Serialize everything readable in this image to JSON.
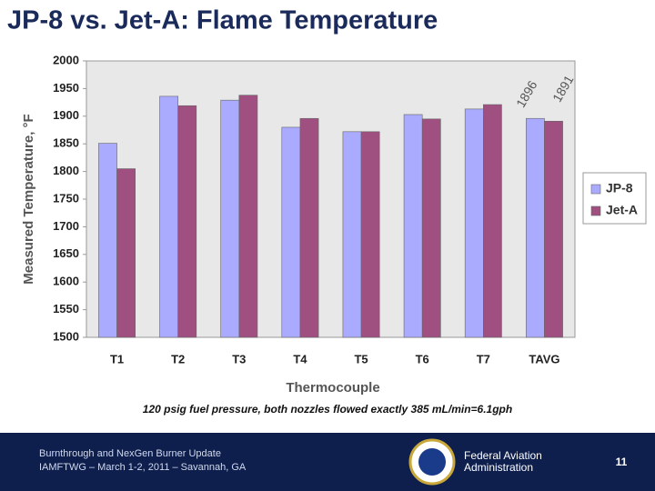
{
  "chart_data": {
    "type": "bar",
    "title": "JP-8 vs. Jet-A:  Flame Temperature",
    "y_label": "Measured Temperature, °F",
    "x_label": "Thermocouple",
    "caption": "120 psig fuel pressure, both nozzles flowed exactly 385 mL/min=6.1gph",
    "categories": [
      "T1",
      "T2",
      "T3",
      "T4",
      "T5",
      "T6",
      "T7",
      "TAVG"
    ],
    "series": [
      {
        "name": "JP-8",
        "color": "#aaaaff",
        "values": [
          1851,
          1936,
          1929,
          1880,
          1872,
          1903,
          1913,
          1896
        ]
      },
      {
        "name": "Jet-A",
        "color": "#a05080",
        "values": [
          1805,
          1919,
          1938,
          1896,
          1872,
          1895,
          1921,
          1891
        ]
      }
    ],
    "ylim": [
      1500,
      2000
    ],
    "yticks": [
      1500,
      1550,
      1600,
      1650,
      1700,
      1750,
      1800,
      1850,
      1900,
      1950,
      2000
    ],
    "grid": false,
    "legend": "right"
  },
  "footer": {
    "line1": "Burnthrough and NexGen Burner Update",
    "line2": "IAMFTWG – March 1-2, 2011 – Savannah, GA",
    "agency1": "Federal Aviation",
    "agency2": "Administration",
    "page": "11"
  }
}
